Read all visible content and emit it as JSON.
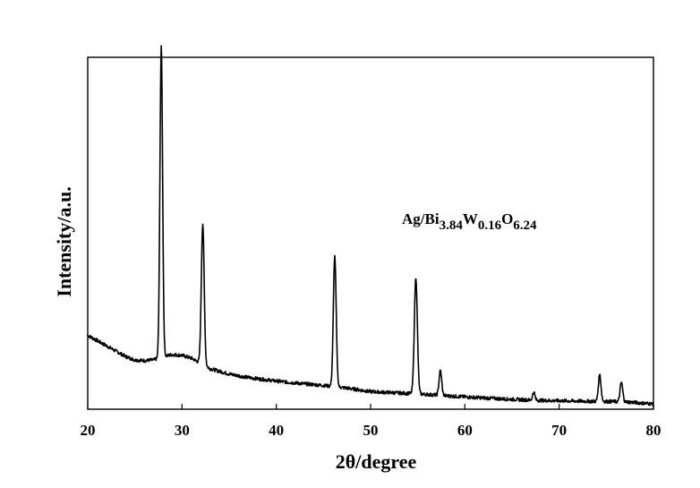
{
  "chart_data": {
    "type": "line",
    "title": "",
    "xlabel": "2θ/degree",
    "ylabel": "Intensity/a.u.",
    "xlim": [
      20,
      80
    ],
    "ylim": [
      0,
      100
    ],
    "x_ticks": [
      20,
      30,
      40,
      50,
      60,
      70,
      80
    ],
    "x_tick_labels": [
      "20",
      "30",
      "40",
      "50",
      "60",
      "70",
      "80"
    ],
    "y_ticks_shown": false,
    "grid": false,
    "annotation": {
      "parts": [
        {
          "text": "Ag/Bi",
          "sub": false
        },
        {
          "text": "3.84",
          "sub": true
        },
        {
          "text": "W",
          "sub": false
        },
        {
          "text": "0.16",
          "sub": true
        },
        {
          "text": "O",
          "sub": false
        },
        {
          "text": "6.24",
          "sub": true
        }
      ]
    },
    "series": [
      {
        "color": "#000000",
        "background": [
          [
            20,
            21
          ],
          [
            22,
            18
          ],
          [
            24,
            15
          ],
          [
            25,
            14
          ],
          [
            26,
            13.8
          ],
          [
            27,
            14
          ],
          [
            28,
            15
          ],
          [
            29,
            15.5
          ],
          [
            30,
            15.3
          ],
          [
            31,
            14.5
          ],
          [
            32,
            13
          ],
          [
            33,
            11.5
          ],
          [
            35,
            10
          ],
          [
            37,
            9
          ],
          [
            40,
            8
          ],
          [
            43,
            7.2
          ],
          [
            46,
            6.5
          ],
          [
            48,
            5.8
          ],
          [
            50,
            5
          ],
          [
            53,
            4.6
          ],
          [
            55,
            4.4
          ],
          [
            58,
            3.8
          ],
          [
            60,
            3.5
          ],
          [
            62,
            3.2
          ],
          [
            65,
            2.8
          ],
          [
            68,
            2.5
          ],
          [
            70,
            2.4
          ],
          [
            72,
            2.3
          ],
          [
            75,
            2.2
          ],
          [
            77,
            2.1
          ],
          [
            80,
            1.5
          ]
        ],
        "peaks": [
          {
            "x": 27.8,
            "height": 88,
            "width": 0.14
          },
          {
            "x": 32.2,
            "height": 40,
            "width": 0.15
          },
          {
            "x": 46.2,
            "height": 37,
            "width": 0.15
          },
          {
            "x": 54.8,
            "height": 33,
            "width": 0.16
          },
          {
            "x": 57.4,
            "height": 7,
            "width": 0.14
          },
          {
            "x": 67.3,
            "height": 2.3,
            "width": 0.12
          },
          {
            "x": 74.3,
            "height": 7.5,
            "width": 0.14
          },
          {
            "x": 76.6,
            "height": 5.5,
            "width": 0.14
          }
        ]
      }
    ]
  }
}
